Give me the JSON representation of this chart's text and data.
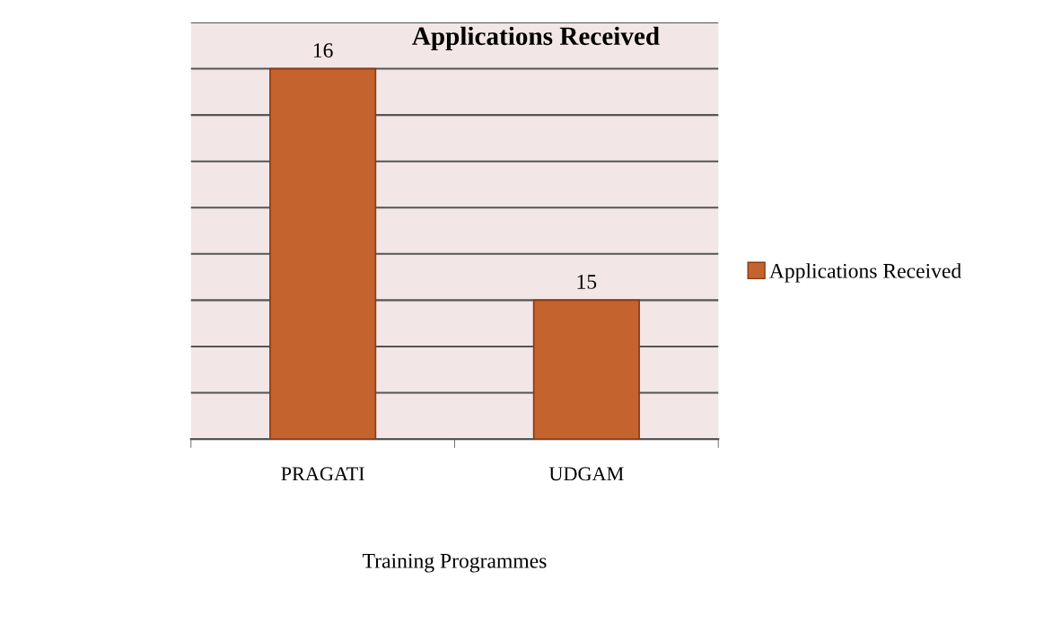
{
  "chart_data": {
    "type": "bar",
    "title": "Applications Received",
    "xlabel": "Training Programmes",
    "categories": [
      "PRAGATI",
      "UDGAM"
    ],
    "series": [
      {
        "name": "Applications Received",
        "color": "#c4632d",
        "values": [
          16,
          15
        ]
      }
    ],
    "ylim": [
      14.4,
      16.2
    ],
    "yticks": [
      {
        "value": 14.4,
        "label": null
      },
      {
        "value": 14.6,
        "label": null
      },
      {
        "value": 14.8,
        "label": null
      },
      {
        "value": 15.0,
        "label": null
      },
      {
        "value": 15.2,
        "label": null
      },
      {
        "value": 15.4,
        "label": null
      },
      {
        "value": 15.6,
        "label": null
      },
      {
        "value": 15.8,
        "label": null
      },
      {
        "value": 16.0,
        "label": null
      },
      {
        "value": 16.2,
        "label": null
      }
    ],
    "tick_labels": "x",
    "grid": "y",
    "legend": "right",
    "data_labels": true
  }
}
